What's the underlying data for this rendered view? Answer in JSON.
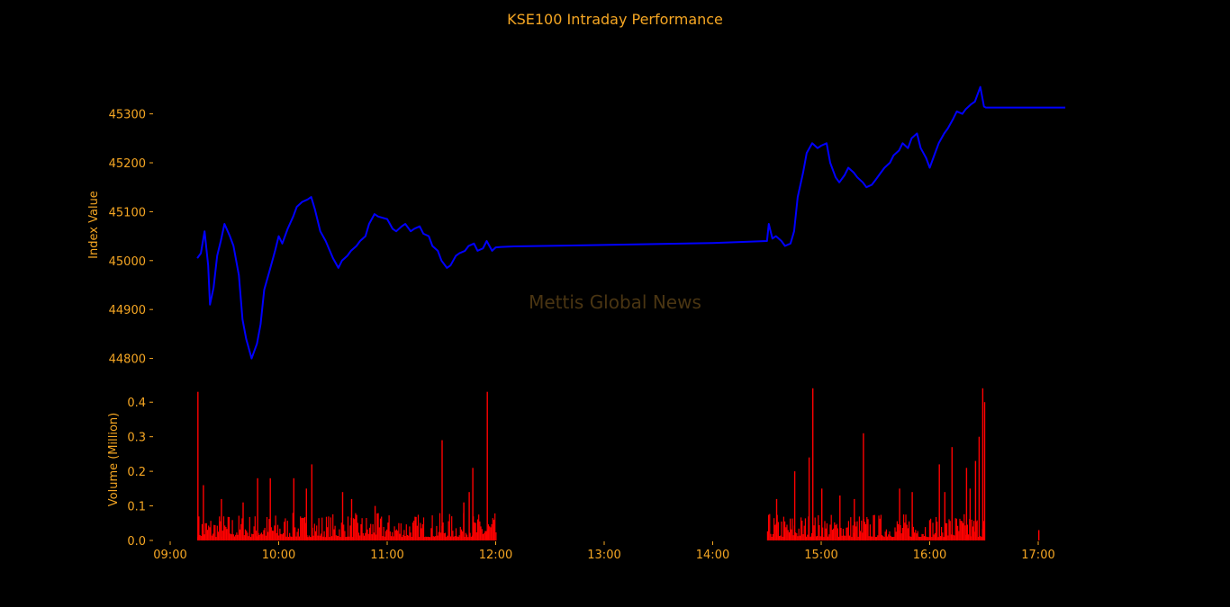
{
  "chart_data": {
    "type": "line",
    "title": "KSE100 Intraday Performance",
    "watermark": "Mettis Global News",
    "background": "#000000",
    "text_color": "#F5A623",
    "line_color": "#0000FF",
    "bar_color": "#FF0000",
    "grid": false,
    "x_axis": {
      "range": [
        "09:00",
        "17:15"
      ],
      "ticks": [
        "09:00",
        "10:00",
        "11:00",
        "12:00",
        "13:00",
        "14:00",
        "15:00",
        "16:00",
        "17:00"
      ]
    },
    "price_panel": {
      "ylabel": "Index Value",
      "ylim": [
        44790,
        45360
      ],
      "yticks": [
        44800,
        44900,
        45000,
        45100,
        45200,
        45300
      ],
      "series": [
        {
          "x": [
            "09:15",
            "09:17",
            "09:19",
            "09:21",
            "09:22",
            "09:24",
            "09:26",
            "09:28",
            "09:30",
            "09:33",
            "09:35",
            "09:38",
            "09:40",
            "09:42",
            "09:45",
            "09:48",
            "09:50",
            "09:52",
            "09:55",
            "09:58",
            "10:00",
            "10:02",
            "10:05",
            "10:08",
            "10:10",
            "10:13",
            "10:16",
            "10:18",
            "10:20",
            "10:23",
            "10:26",
            "10:30",
            "10:33",
            "10:35",
            "10:38",
            "10:40",
            "10:43",
            "10:45",
            "10:48",
            "10:50",
            "10:53",
            "10:55",
            "11:00",
            "11:03",
            "11:05",
            "11:08",
            "11:10",
            "11:13",
            "11:15",
            "11:18",
            "11:20",
            "11:23",
            "11:25",
            "11:28",
            "11:30",
            "11:33",
            "11:35",
            "11:38",
            "11:40",
            "11:43",
            "11:45",
            "11:48",
            "11:50",
            "11:53",
            "11:55",
            "11:58",
            "12:00",
            "12:03",
            "12:10",
            "13:00",
            "14:00",
            "14:30",
            "14:31",
            "14:33",
            "14:35",
            "14:38",
            "14:40",
            "14:43",
            "14:45",
            "14:47",
            "14:50",
            "14:52",
            "14:55",
            "14:58",
            "15:00",
            "15:03",
            "15:05",
            "15:08",
            "15:10",
            "15:13",
            "15:15",
            "15:18",
            "15:20",
            "15:23",
            "15:25",
            "15:28",
            "15:30",
            "15:33",
            "15:35",
            "15:38",
            "15:40",
            "15:43",
            "15:45",
            "15:48",
            "15:50",
            "15:53",
            "15:55",
            "15:58",
            "16:00",
            "16:03",
            "16:05",
            "16:08",
            "16:10",
            "16:13",
            "16:15",
            "16:18",
            "16:20",
            "16:23",
            "16:25",
            "16:28",
            "16:30",
            "16:31",
            "17:00",
            "17:15"
          ],
          "y": [
            45005,
            45015,
            45060,
            44990,
            44910,
            44945,
            45010,
            45040,
            45075,
            45050,
            45030,
            44970,
            44880,
            44840,
            44800,
            44830,
            44870,
            44940,
            44980,
            45020,
            45050,
            45035,
            45065,
            45090,
            45110,
            45120,
            45125,
            45130,
            45105,
            45060,
            45040,
            45005,
            44985,
            45000,
            45010,
            45020,
            45030,
            45040,
            45050,
            45075,
            45095,
            45090,
            45085,
            45065,
            45060,
            45070,
            45075,
            45060,
            45065,
            45070,
            45055,
            45050,
            45030,
            45020,
            45000,
            44985,
            44990,
            45010,
            45015,
            45020,
            45030,
            45035,
            45020,
            45025,
            45040,
            45020,
            45027,
            45028,
            45029,
            45032,
            45036,
            45040,
            45075,
            45045,
            45050,
            45040,
            45030,
            45035,
            45060,
            45130,
            45180,
            45220,
            45240,
            45230,
            45235,
            45240,
            45200,
            45170,
            45160,
            45175,
            45190,
            45180,
            45170,
            45160,
            45150,
            45155,
            45165,
            45180,
            45190,
            45200,
            45215,
            45225,
            45240,
            45230,
            45250,
            45260,
            45230,
            45210,
            45190,
            45220,
            45240,
            45260,
            45270,
            45290,
            45305,
            45300,
            45310,
            45320,
            45325,
            45355,
            45315,
            45313,
            45313,
            45313
          ]
        }
      ]
    },
    "volume_panel": {
      "ylabel": "Volume (Million)",
      "ylim": [
        0,
        0.45
      ],
      "yticks": [
        "0.0",
        "0.1",
        "0.2",
        "0.3",
        "0.4"
      ],
      "spikes": [
        {
          "x": "09:15",
          "value": 0.43
        },
        {
          "x": "09:18",
          "value": 0.16
        },
        {
          "x": "09:28",
          "value": 0.12
        },
        {
          "x": "09:40",
          "value": 0.11
        },
        {
          "x": "09:48",
          "value": 0.18
        },
        {
          "x": "09:55",
          "value": 0.18
        },
        {
          "x": "10:08",
          "value": 0.18
        },
        {
          "x": "10:15",
          "value": 0.15
        },
        {
          "x": "10:18",
          "value": 0.22
        },
        {
          "x": "10:35",
          "value": 0.14
        },
        {
          "x": "10:40",
          "value": 0.12
        },
        {
          "x": "10:53",
          "value": 0.1
        },
        {
          "x": "11:30",
          "value": 0.29
        },
        {
          "x": "11:42",
          "value": 0.11
        },
        {
          "x": "11:45",
          "value": 0.14
        },
        {
          "x": "11:47",
          "value": 0.21
        },
        {
          "x": "11:55",
          "value": 0.43
        },
        {
          "x": "14:35",
          "value": 0.12
        },
        {
          "x": "14:45",
          "value": 0.2
        },
        {
          "x": "14:53",
          "value": 0.24
        },
        {
          "x": "14:55",
          "value": 0.44
        },
        {
          "x": "15:00",
          "value": 0.15
        },
        {
          "x": "15:10",
          "value": 0.13
        },
        {
          "x": "15:18",
          "value": 0.12
        },
        {
          "x": "15:23",
          "value": 0.31
        },
        {
          "x": "15:43",
          "value": 0.15
        },
        {
          "x": "15:50",
          "value": 0.14
        },
        {
          "x": "16:05",
          "value": 0.22
        },
        {
          "x": "16:08",
          "value": 0.14
        },
        {
          "x": "16:12",
          "value": 0.27
        },
        {
          "x": "16:20",
          "value": 0.21
        },
        {
          "x": "16:22",
          "value": 0.15
        },
        {
          "x": "16:25",
          "value": 0.23
        },
        {
          "x": "16:27",
          "value": 0.3
        },
        {
          "x": "16:29",
          "value": 0.44
        },
        {
          "x": "16:30",
          "value": 0.4
        },
        {
          "x": "17:00",
          "value": 0.03
        }
      ]
    }
  }
}
